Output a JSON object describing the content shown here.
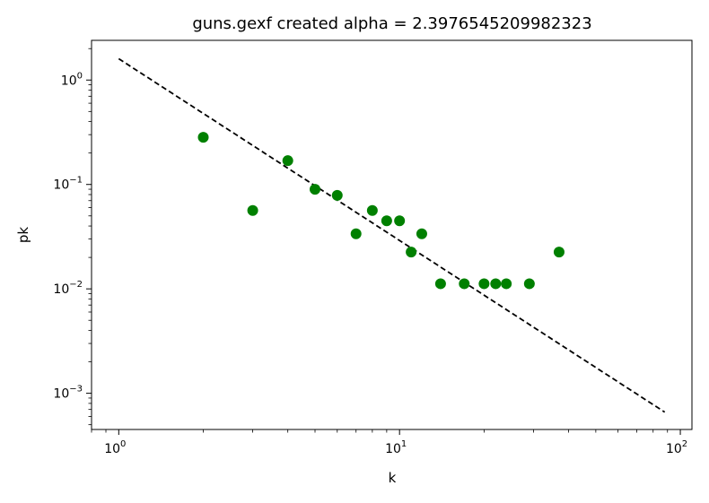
{
  "chart_data": {
    "type": "scatter",
    "title": "guns.gexf created alpha = 2.3976545209982323",
    "xlabel": "k",
    "ylabel": "pk",
    "xscale": "log",
    "yscale": "log",
    "xlim": [
      0.8,
      110
    ],
    "ylim": [
      0.00045,
      2.4
    ],
    "x_ticks": [
      {
        "value": 1,
        "base": "10",
        "exp": "0"
      },
      {
        "value": 10,
        "base": "10",
        "exp": "1"
      },
      {
        "value": 100,
        "base": "10",
        "exp": "2"
      }
    ],
    "y_ticks": [
      {
        "value": 1,
        "base": "10",
        "exp": "0"
      },
      {
        "value": 0.1,
        "base": "10",
        "exp": "−1"
      },
      {
        "value": 0.01,
        "base": "10",
        "exp": "−2"
      },
      {
        "value": 0.001,
        "base": "10",
        "exp": "−3"
      }
    ],
    "grid": false,
    "points": {
      "color": "#008000",
      "x": [
        2,
        3,
        4,
        5,
        6,
        7,
        8,
        9,
        10,
        11,
        12,
        14,
        17,
        20,
        22,
        24,
        29,
        37
      ],
      "y": [
        0.283,
        0.0563,
        0.169,
        0.0899,
        0.0787,
        0.0337,
        0.0563,
        0.0449,
        0.0449,
        0.0225,
        0.0337,
        0.0112,
        0.0112,
        0.0112,
        0.0112,
        0.0112,
        0.0112,
        0.0225
      ]
    },
    "fit_line": {
      "style": "dashed",
      "color": "#000000",
      "x": [
        1,
        88
      ],
      "y": [
        1.6,
        0.00066
      ]
    }
  }
}
